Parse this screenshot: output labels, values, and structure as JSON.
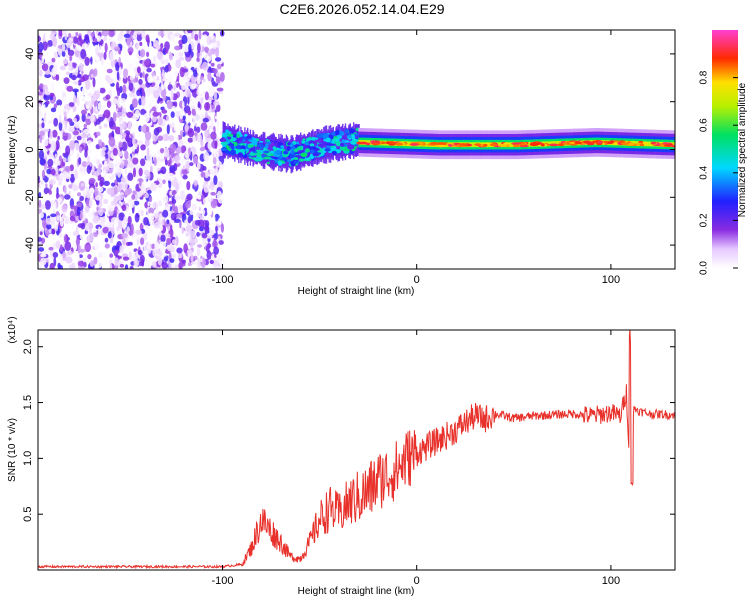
{
  "figure": {
    "title": "C2E6.2026.052.14.04.E29"
  },
  "chart_data": [
    {
      "type": "heatmap",
      "panel": "spectrogram",
      "xlabel": "Height of straight line (km)",
      "ylabel": "Frequency (Hz)",
      "xlim": [
        -195,
        133
      ],
      "ylim": [
        -50,
        50
      ],
      "x_ticks": [
        -100,
        0,
        100
      ],
      "y_ticks": [
        -40,
        -20,
        0,
        20,
        40
      ],
      "grid": false,
      "colorbar": {
        "label": "Normalized spectral amplitude",
        "range": [
          0,
          1
        ],
        "ticks": [
          "0.0",
          "0.2",
          "0.4",
          "0.6",
          "0.8"
        ],
        "tick_values": [
          0.0,
          0.2,
          0.4,
          0.6,
          0.8
        ],
        "colormap": "rainbow (white-violet-blue-cyan-green-yellow-red-magenta)"
      },
      "regions": [
        {
          "x_range": [
            -195,
            -100
          ],
          "description": "broadband noise",
          "freq_range": [
            -50,
            50
          ],
          "amplitude_range": [
            0.0,
            0.25
          ]
        },
        {
          "x_range": [
            -100,
            -30
          ],
          "description": "onset signal",
          "center_freq": [
            4,
            0,
            -2,
            2,
            4
          ],
          "amplitude_range": [
            0.2,
            0.55
          ]
        },
        {
          "x_range": [
            -30,
            133
          ],
          "description": "steady carrier",
          "center_freq": [
            3,
            2,
            2,
            3,
            2
          ],
          "amplitude_range": [
            0.3,
            1.0
          ]
        }
      ]
    },
    {
      "type": "line",
      "panel": "snr",
      "xlabel": "Height of straight line (km)",
      "ylabel": "SNR (10 * v/v)",
      "y_multiplier": "(x10⁴)",
      "xlim": [
        -195,
        133
      ],
      "ylim": [
        0,
        2.15
      ],
      "x_ticks": [
        -100,
        0,
        100
      ],
      "y_ticks": [
        "0.5",
        "1.0",
        "1.5",
        "2.0"
      ],
      "y_tick_values": [
        0.5,
        1.0,
        1.5,
        2.0
      ],
      "grid": false,
      "series": [
        {
          "name": "SNR",
          "color": "#e8312b",
          "x": [
            -195,
            -160,
            -120,
            -100,
            -90,
            -85,
            -80,
            -75,
            -70,
            -65,
            -60,
            -55,
            -50,
            -45,
            -40,
            -35,
            -30,
            -25,
            -20,
            -15,
            -10,
            -5,
            0,
            5,
            10,
            15,
            20,
            25,
            30,
            35,
            40,
            45,
            50,
            60,
            70,
            80,
            90,
            100,
            105,
            108,
            110,
            112,
            115,
            120,
            133
          ],
          "y": [
            0.03,
            0.03,
            0.03,
            0.03,
            0.05,
            0.2,
            0.45,
            0.35,
            0.25,
            0.12,
            0.1,
            0.25,
            0.45,
            0.55,
            0.5,
            0.6,
            0.65,
            0.7,
            0.8,
            0.85,
            0.9,
            1.0,
            1.05,
            1.1,
            1.15,
            1.2,
            1.25,
            1.32,
            1.38,
            1.35,
            1.4,
            1.38,
            1.36,
            1.38,
            1.39,
            1.4,
            1.38,
            1.41,
            1.38,
            1.6,
            0.85,
            1.45,
            1.42,
            1.4,
            1.39
          ]
        }
      ]
    }
  ]
}
